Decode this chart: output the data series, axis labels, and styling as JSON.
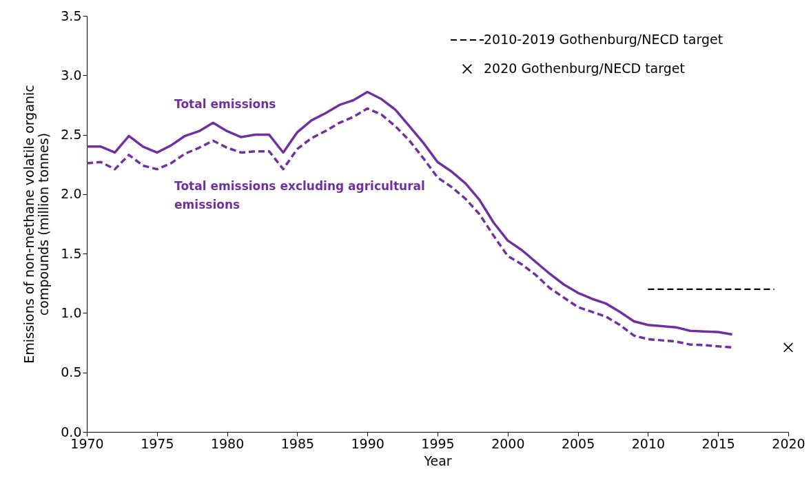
{
  "chart_data": {
    "type": "line",
    "xlabel": "Year",
    "ylabel": "Emissions of non-methane volatile organic compounds (million tonnes)",
    "x": [
      1970,
      1971,
      1972,
      1973,
      1974,
      1975,
      1976,
      1977,
      1978,
      1979,
      1980,
      1981,
      1982,
      1983,
      1984,
      1985,
      1986,
      1987,
      1988,
      1989,
      1990,
      1991,
      1992,
      1993,
      1994,
      1995,
      1996,
      1997,
      1998,
      1999,
      2000,
      2001,
      2002,
      2003,
      2004,
      2005,
      2006,
      2007,
      2008,
      2009,
      2010,
      2011,
      2012,
      2013,
      2014,
      2015,
      2016
    ],
    "series": [
      {
        "name": "Total emissions",
        "color": "#7030a0",
        "line_style": "solid",
        "values": [
          2.4,
          2.4,
          2.35,
          2.49,
          2.4,
          2.35,
          2.41,
          2.49,
          2.53,
          2.6,
          2.53,
          2.48,
          2.5,
          2.5,
          2.35,
          2.52,
          2.62,
          2.68,
          2.75,
          2.79,
          2.86,
          2.8,
          2.71,
          2.57,
          2.43,
          2.27,
          2.19,
          2.09,
          1.95,
          1.76,
          1.61,
          1.53,
          1.43,
          1.33,
          1.24,
          1.17,
          1.12,
          1.08,
          1.01,
          0.93,
          0.9,
          0.89,
          0.88,
          0.85,
          0.845,
          0.84,
          0.82
        ]
      },
      {
        "name": "Total emissions excluding agricultural emissions",
        "color": "#7030a0",
        "line_style": "dashed",
        "values": [
          2.26,
          2.27,
          2.21,
          2.33,
          2.24,
          2.21,
          2.26,
          2.34,
          2.39,
          2.45,
          2.39,
          2.35,
          2.36,
          2.36,
          2.21,
          2.38,
          2.47,
          2.53,
          2.6,
          2.65,
          2.72,
          2.67,
          2.57,
          2.45,
          2.3,
          2.14,
          2.06,
          1.96,
          1.83,
          1.65,
          1.48,
          1.41,
          1.32,
          1.21,
          1.13,
          1.05,
          1.01,
          0.97,
          0.9,
          0.81,
          0.78,
          0.77,
          0.76,
          0.735,
          0.73,
          0.72,
          0.71
        ]
      },
      {
        "name": "2010-2019 Gothenburg/NECD target",
        "color": "#000000",
        "line_style": "dashed",
        "x": [
          2010,
          2019
        ],
        "values": [
          1.2,
          1.2
        ]
      },
      {
        "name": "2020 Gothenburg/NECD target",
        "type": "scatter",
        "marker": "cross",
        "color": "#000000",
        "x": [
          2020
        ],
        "values": [
          0.71
        ]
      }
    ],
    "xlim": [
      1970,
      2020
    ],
    "xticks": [
      1970,
      1975,
      1980,
      1985,
      1990,
      1995,
      2000,
      2005,
      2010,
      2015,
      2020
    ],
    "ylim": [
      0,
      3.5
    ],
    "yticks": [
      {
        "value": 0,
        "label": "0.0"
      },
      0.5,
      {
        "value": 1,
        "label": "1.0"
      },
      1.5,
      {
        "value": 2,
        "label": "2.0"
      },
      2.5,
      {
        "value": 3,
        "label": "3.0"
      },
      3.5
    ],
    "legend": "top right"
  }
}
